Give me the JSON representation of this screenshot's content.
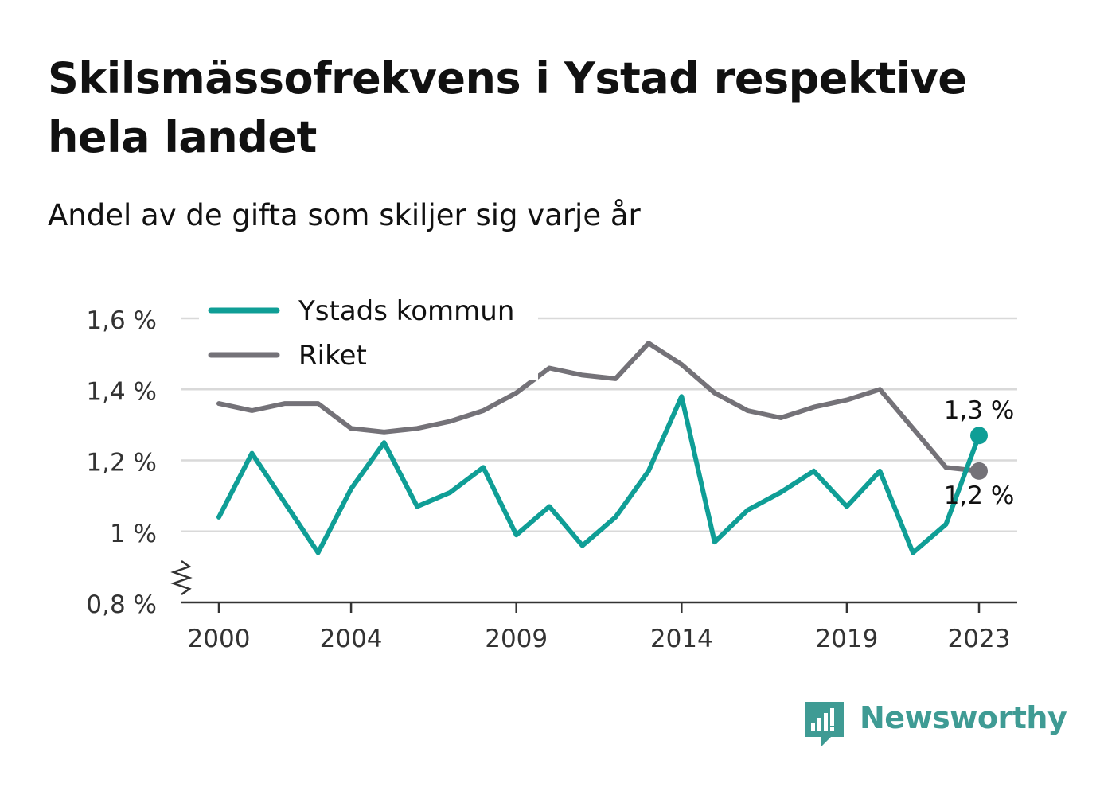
{
  "title": "Skilsmässofrekvens i Ystad respektive hela landet",
  "subtitle": "Andel av de gifta som skiljer sig varje år",
  "brand": {
    "name": "Newsworthy",
    "color": "#3f9b94",
    "icon": "newsworthy-bar-icon"
  },
  "chart_data": {
    "type": "line",
    "x": [
      2000,
      2001,
      2002,
      2003,
      2004,
      2005,
      2006,
      2007,
      2008,
      2009,
      2010,
      2011,
      2012,
      2013,
      2014,
      2015,
      2016,
      2017,
      2018,
      2019,
      2020,
      2021,
      2022,
      2023
    ],
    "x_ticks": [
      2000,
      2004,
      2009,
      2014,
      2019,
      2023
    ],
    "ylim": [
      0.8,
      1.6
    ],
    "y_ticks": [
      {
        "value": 0.8,
        "label": "0,8 %"
      },
      {
        "value": 1.0,
        "label": "1 %"
      },
      {
        "value": 1.2,
        "label": "1,2 %"
      },
      {
        "value": 1.4,
        "label": "1,4 %"
      },
      {
        "value": 1.6,
        "label": "1,6 %"
      }
    ],
    "grid": true,
    "axis_break": true,
    "legend_position": "top-left",
    "series": [
      {
        "name": "Ystads kommun",
        "color": "#0f9e96",
        "values": [
          1.04,
          1.22,
          1.08,
          0.94,
          1.12,
          1.25,
          1.07,
          1.11,
          1.18,
          0.99,
          1.07,
          0.96,
          1.04,
          1.17,
          1.38,
          0.97,
          1.06,
          1.11,
          1.17,
          1.07,
          1.17,
          0.94,
          1.02,
          1.27
        ],
        "end_label": "1,3 %"
      },
      {
        "name": "Riket",
        "color": "#747278",
        "values": [
          1.36,
          1.34,
          1.36,
          1.36,
          1.29,
          1.28,
          1.29,
          1.31,
          1.34,
          1.39,
          1.46,
          1.44,
          1.43,
          1.53,
          1.47,
          1.39,
          1.34,
          1.32,
          1.35,
          1.37,
          1.4,
          1.29,
          1.18,
          1.17
        ],
        "end_label": "1,2 %"
      }
    ]
  }
}
